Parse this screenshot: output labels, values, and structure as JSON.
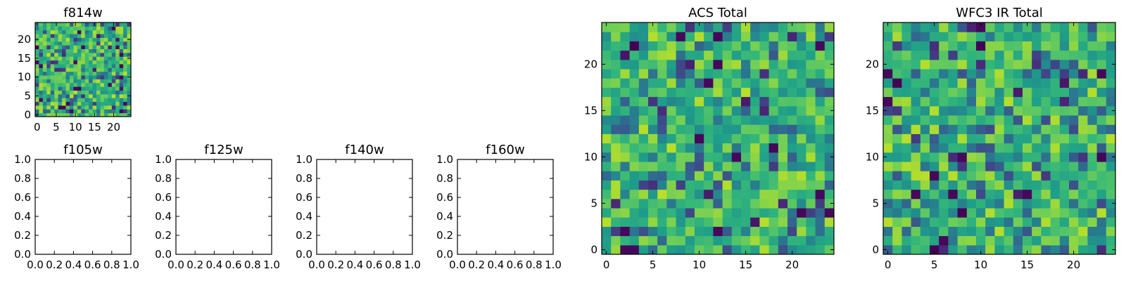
{
  "figure": {
    "background": "#ffffff",
    "colormap": "viridis"
  },
  "chart_data": [
    {
      "id": "f814w",
      "type": "heatmap",
      "title": "f814w",
      "grid_size": [
        25,
        25
      ],
      "pixel_value_range": [
        0,
        1
      ],
      "xlim": [
        0,
        25
      ],
      "ylim": [
        0,
        25
      ],
      "xticks": [
        0,
        5,
        10,
        15,
        20
      ],
      "yticks": [
        0,
        5,
        10,
        15,
        20
      ],
      "xticklabels": [
        "0",
        "5",
        "10",
        "15",
        "20"
      ],
      "yticklabels": [
        "0",
        "5",
        "10",
        "15",
        "20"
      ],
      "pixel_values": "25x25 noise image (individual pixel values not legible)"
    },
    {
      "id": "f105w",
      "type": "heatmap",
      "title": "f105w",
      "empty": true,
      "xlim": [
        0,
        1
      ],
      "ylim": [
        0,
        1
      ],
      "xticks": [
        0,
        0.2,
        0.4,
        0.6,
        0.8,
        1.0
      ],
      "yticks": [
        0,
        0.2,
        0.4,
        0.6,
        0.8,
        1.0
      ],
      "xticklabels": [
        "0.0",
        "0.2",
        "0.4",
        "0.6",
        "0.8",
        "1.0"
      ],
      "yticklabels": [
        "0.0",
        "0.2",
        "0.4",
        "0.6",
        "0.8",
        "1.0"
      ]
    },
    {
      "id": "f125w",
      "type": "heatmap",
      "title": "f125w",
      "empty": true,
      "xlim": [
        0,
        1
      ],
      "ylim": [
        0,
        1
      ],
      "xticks": [
        0,
        0.2,
        0.4,
        0.6,
        0.8,
        1.0
      ],
      "yticks": [
        0,
        0.2,
        0.4,
        0.6,
        0.8,
        1.0
      ],
      "xticklabels": [
        "0.0",
        "0.2",
        "0.4",
        "0.6",
        "0.8",
        "1.0"
      ],
      "yticklabels": [
        "0.0",
        "0.2",
        "0.4",
        "0.6",
        "0.8",
        "1.0"
      ]
    },
    {
      "id": "f140w",
      "type": "heatmap",
      "title": "f140w",
      "empty": true,
      "xlim": [
        0,
        1
      ],
      "ylim": [
        0,
        1
      ],
      "xticks": [
        0,
        0.2,
        0.4,
        0.6,
        0.8,
        1.0
      ],
      "yticks": [
        0,
        0.2,
        0.4,
        0.6,
        0.8,
        1.0
      ],
      "xticklabels": [
        "0.0",
        "0.2",
        "0.4",
        "0.6",
        "0.8",
        "1.0"
      ],
      "yticklabels": [
        "0.0",
        "0.2",
        "0.4",
        "0.6",
        "0.8",
        "1.0"
      ]
    },
    {
      "id": "f160w",
      "type": "heatmap",
      "title": "f160w",
      "empty": true,
      "xlim": [
        0,
        1
      ],
      "ylim": [
        0,
        1
      ],
      "xticks": [
        0,
        0.2,
        0.4,
        0.6,
        0.8,
        1.0
      ],
      "yticks": [
        0,
        0.2,
        0.4,
        0.6,
        0.8,
        1.0
      ],
      "xticklabels": [
        "0.0",
        "0.2",
        "0.4",
        "0.6",
        "0.8",
        "1.0"
      ],
      "yticklabels": [
        "0.0",
        "0.2",
        "0.4",
        "0.6",
        "0.8",
        "1.0"
      ]
    },
    {
      "id": "acs_total",
      "type": "heatmap",
      "title": "ACS Total",
      "grid_size": [
        25,
        25
      ],
      "pixel_value_range": [
        0,
        1
      ],
      "xlim": [
        0,
        25
      ],
      "ylim": [
        0,
        25
      ],
      "xticks": [
        0,
        5,
        10,
        15,
        20
      ],
      "yticks": [
        0,
        5,
        10,
        15,
        20
      ],
      "xticklabels": [
        "0",
        "5",
        "10",
        "15",
        "20"
      ],
      "yticklabels": [
        "0",
        "5",
        "10",
        "15",
        "20"
      ],
      "pixel_values": "25x25 noise image (individual pixel values not legible)"
    },
    {
      "id": "wfc3_ir_total",
      "type": "heatmap",
      "title": "WFC3 IR Total",
      "grid_size": [
        25,
        25
      ],
      "pixel_value_range": [
        0,
        1
      ],
      "xlim": [
        0,
        25
      ],
      "ylim": [
        0,
        25
      ],
      "xticks": [
        0,
        5,
        10,
        15,
        20
      ],
      "yticks": [
        0,
        5,
        10,
        15,
        20
      ],
      "xticklabels": [
        "0",
        "5",
        "10",
        "15",
        "20"
      ],
      "yticklabels": [
        "0",
        "5",
        "10",
        "15",
        "20"
      ],
      "pixel_values": "25x25 noise image (individual pixel values not legible)"
    }
  ]
}
